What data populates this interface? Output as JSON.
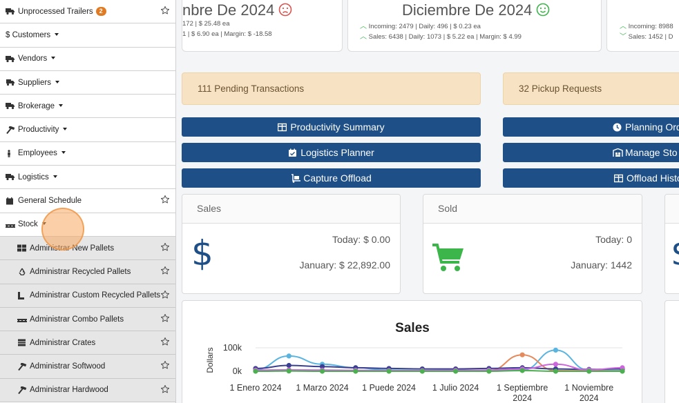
{
  "sidebar": {
    "items": [
      {
        "label": "Unprocessed Trailers",
        "badge": "2",
        "icon": "truck-icon",
        "star": true
      },
      {
        "label": "$ Customers",
        "caret": true
      },
      {
        "label": "Vendors",
        "icon": "truck-icon",
        "caret": true
      },
      {
        "label": "Suppliers",
        "icon": "truck-fast-icon",
        "caret": true
      },
      {
        "label": "Brokerage",
        "icon": "truck-icon",
        "caret": true
      },
      {
        "label": "Productivity",
        "icon": "hammer-icon",
        "caret": true
      },
      {
        "label": "Employees",
        "icon": "person-icon",
        "caret": true
      },
      {
        "label": "Logistics",
        "icon": "truck-icon",
        "caret": true
      },
      {
        "label": "General Schedule",
        "icon": "calendar-icon",
        "star": true
      },
      {
        "label": "Stock",
        "icon": "pallet-icon",
        "caret": true
      }
    ],
    "subitems": [
      {
        "label": "Administrar New Pallets",
        "icon": "users-icon"
      },
      {
        "label": "Administrar Recycled Pallets",
        "icon": "recycle-icon"
      },
      {
        "label": "Administrar Custom Recycled Pallets",
        "icon": "corner-icon"
      },
      {
        "label": "Administrar Combo Pallets",
        "icon": "pallet-icon"
      },
      {
        "label": "Administrar Crates",
        "icon": "crate-icon"
      },
      {
        "label": "Administrar Softwood",
        "icon": "hammer-icon"
      },
      {
        "label": "Administrar Hardwood",
        "icon": "hammer-icon"
      }
    ]
  },
  "top_cards": [
    {
      "title": "nbre De 2024",
      "face": "sad",
      "line1": "172 | $ 25.48 ea",
      "line2": "1 | $ 6.90 ea | Margin: $ -18.58"
    },
    {
      "title": "Diciembre De 2024",
      "face": "happy",
      "line1": "Incoming: 2479 | Daily: 496 | $ 0.23 ea",
      "line2": "Sales: 6438 | Daily: 1073 | $ 5.22 ea | Margin: $ 4.99"
    },
    {
      "title": "",
      "line1": "Incoming: 8988",
      "line2": "Sales: 1452 | D"
    }
  ],
  "alerts": {
    "pending": "111 Pending Transactions",
    "pickup": "32 Pickup Requests"
  },
  "buttons": {
    "productivity": "Productivity Summary",
    "logistics": "Logistics Planner",
    "capture": "Capture Offload",
    "planning": "Planning Ord",
    "manage": "Manage Sto",
    "offload_history": "Offload Histo"
  },
  "panels": {
    "sales": {
      "head": "Sales",
      "today": "Today: $ 0.00",
      "month": "January: $ 22,892.00"
    },
    "sold": {
      "head": "Sold",
      "today": "Today: 0",
      "month": "January: 1442"
    }
  },
  "colors": {
    "primary": "#1e4f86",
    "alert_bg": "#f7e3c3",
    "green": "#3cb54a",
    "badge": "#e07b24"
  },
  "chart_data": {
    "type": "line",
    "title": "Sales",
    "ylabel": "Dollars",
    "xlabel": "",
    "ylim": [
      0,
      100000
    ],
    "yticks": [
      "100k",
      "0k"
    ],
    "xticks": [
      {
        "line1": "1 Enero 2024",
        "line2": ""
      },
      {
        "line1": "1 Marzo 2024",
        "line2": ""
      },
      {
        "line1": "1 Puede 2024",
        "line2": ""
      },
      {
        "line1": "1 Julio 2024",
        "line2": ""
      },
      {
        "line1": "1 Septiembre",
        "line2": "2024"
      },
      {
        "line1": "1 Noviembre",
        "line2": "2024"
      }
    ],
    "x": [
      "2024-01",
      "2024-02",
      "2024-03",
      "2024-04",
      "2024-05",
      "2024-06",
      "2024-07",
      "2024-08",
      "2024-09",
      "2024-10",
      "2024-11",
      "2024-12"
    ],
    "series": [
      {
        "color": "#5ab4e0",
        "values": [
          8000,
          65000,
          30000,
          15000,
          5000,
          3000,
          4000,
          3000,
          5000,
          90000,
          5000,
          3000
        ]
      },
      {
        "color": "#e58a5c",
        "values": [
          2000,
          3000,
          2000,
          2000,
          1000,
          1000,
          2000,
          3000,
          70000,
          3000,
          2000,
          1000
        ]
      },
      {
        "color": "#3a3f8f",
        "values": [
          12000,
          25000,
          20000,
          15000,
          12000,
          10000,
          10000,
          12000,
          15000,
          10000,
          8000,
          10000
        ]
      },
      {
        "color": "#cc66dd",
        "values": [
          5000,
          6000,
          5000,
          4000,
          3000,
          3000,
          4000,
          5000,
          10000,
          30000,
          6000,
          15000
        ]
      },
      {
        "color": "#4caf50",
        "values": [
          0,
          1000,
          0,
          0,
          0,
          0,
          0,
          0,
          3000,
          0,
          0,
          0
        ]
      }
    ]
  }
}
